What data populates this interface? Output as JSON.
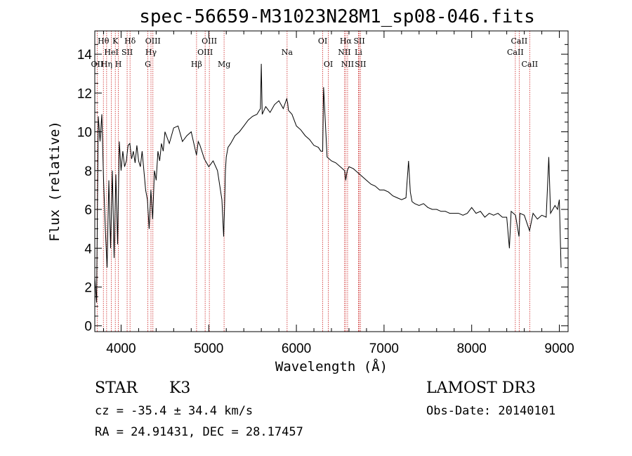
{
  "chart_data": {
    "type": "line",
    "title": "spec-56659-M31023N28M1_sp08-046.fits",
    "xlabel": "Wavelength (Å)",
    "ylabel": "Flux (relative)",
    "xlim": [
      3700,
      9100
    ],
    "ylim": [
      -0.3,
      15.2
    ],
    "xticks": [
      4000,
      5000,
      6000,
      7000,
      8000,
      9000
    ],
    "yticks": [
      0,
      2,
      4,
      6,
      8,
      10,
      12,
      14
    ],
    "series": [
      {
        "name": "spectrum",
        "x": [
          3700,
          3720,
          3740,
          3760,
          3780,
          3800,
          3820,
          3840,
          3860,
          3880,
          3900,
          3920,
          3940,
          3960,
          3980,
          4000,
          4020,
          4040,
          4060,
          4080,
          4100,
          4120,
          4140,
          4160,
          4180,
          4200,
          4220,
          4240,
          4260,
          4280,
          4300,
          4320,
          4340,
          4360,
          4380,
          4400,
          4420,
          4440,
          4460,
          4480,
          4500,
          4550,
          4600,
          4650,
          4700,
          4750,
          4800,
          4850,
          4860,
          4880,
          4900,
          4950,
          5000,
          5050,
          5100,
          5150,
          5170,
          5180,
          5190,
          5200,
          5220,
          5250,
          5300,
          5350,
          5400,
          5450,
          5500,
          5550,
          5590,
          5600,
          5610,
          5650,
          5700,
          5750,
          5800,
          5850,
          5890,
          5900,
          5910,
          5950,
          6000,
          6050,
          6100,
          6150,
          6200,
          6250,
          6280,
          6300,
          6310,
          6350,
          6400,
          6450,
          6500,
          6550,
          6563,
          6580,
          6600,
          6650,
          6700,
          6750,
          6800,
          6850,
          6900,
          6950,
          7000,
          7050,
          7100,
          7150,
          7200,
          7250,
          7280,
          7300,
          7320,
          7350,
          7400,
          7450,
          7500,
          7550,
          7600,
          7650,
          7700,
          7750,
          7800,
          7850,
          7900,
          7950,
          8000,
          8050,
          8100,
          8150,
          8200,
          8250,
          8300,
          8350,
          8400,
          8430,
          8450,
          8500,
          8540,
          8550,
          8600,
          8660,
          8700,
          8750,
          8800,
          8850,
          8880,
          8900,
          8950,
          8980,
          9000,
          9020
        ],
        "values": [
          2.5,
          1.2,
          10.8,
          9.5,
          10.9,
          7.5,
          5.0,
          3.0,
          7.5,
          4.0,
          8.0,
          3.5,
          7.8,
          4.2,
          9.5,
          8.0,
          9.0,
          8.2,
          8.5,
          9.3,
          9.4,
          8.6,
          9.0,
          8.4,
          9.3,
          8.5,
          8.2,
          9.0,
          8.0,
          7.0,
          6.5,
          5.0,
          7.0,
          5.5,
          8.0,
          7.5,
          9.0,
          8.5,
          9.4,
          9.0,
          10.0,
          9.4,
          10.2,
          10.3,
          9.5,
          9.8,
          10.0,
          9.0,
          8.8,
          9.5,
          9.3,
          8.6,
          8.2,
          8.5,
          8.0,
          6.5,
          4.6,
          6.0,
          8.0,
          8.7,
          9.2,
          9.4,
          9.8,
          10.0,
          10.3,
          10.6,
          10.8,
          10.9,
          11.2,
          13.5,
          10.9,
          11.3,
          11.0,
          11.4,
          11.6,
          11.2,
          11.7,
          11.5,
          11.1,
          10.9,
          10.3,
          10.1,
          9.8,
          9.6,
          9.3,
          9.2,
          9.0,
          9.0,
          12.3,
          8.7,
          8.5,
          8.4,
          8.2,
          8.0,
          7.5,
          8.0,
          8.2,
          8.1,
          7.9,
          7.7,
          7.5,
          7.3,
          7.2,
          7.0,
          7.0,
          6.9,
          6.7,
          6.6,
          6.5,
          6.6,
          8.5,
          6.9,
          6.4,
          6.3,
          6.2,
          6.3,
          6.1,
          6.0,
          6.0,
          5.9,
          5.9,
          5.8,
          5.8,
          5.8,
          5.7,
          5.8,
          6.1,
          5.8,
          5.9,
          5.6,
          5.8,
          5.7,
          5.8,
          5.6,
          5.6,
          4.0,
          5.9,
          5.7,
          4.6,
          5.8,
          5.7,
          4.9,
          5.8,
          5.5,
          5.7,
          5.6,
          8.7,
          5.8,
          6.2,
          6.0,
          6.5,
          3.0
        ]
      }
    ],
    "emission_lines": [
      {
        "label": "OII",
        "wl": 3727,
        "row": 2
      },
      {
        "label": "Hθ",
        "wl": 3798,
        "row": 0
      },
      {
        "label": "Hη",
        "wl": 3835,
        "row": 2
      },
      {
        "label": "HeI",
        "wl": 3889,
        "row": 1
      },
      {
        "label": "K",
        "wl": 3934,
        "row": 0
      },
      {
        "label": "SII",
        "wl": 4069,
        "row": 1
      },
      {
        "label": "H",
        "wl": 3969,
        "row": 2
      },
      {
        "label": "Hδ",
        "wl": 4102,
        "row": 0
      },
      {
        "label": "G",
        "wl": 4305,
        "row": 2
      },
      {
        "label": "Hγ",
        "wl": 4341,
        "row": 1
      },
      {
        "label": "OIII",
        "wl": 4363,
        "row": 0
      },
      {
        "label": "Hβ",
        "wl": 4861,
        "row": 2
      },
      {
        "label": "OIII",
        "wl": 4959,
        "row": 1
      },
      {
        "label": "OIII",
        "wl": 5007,
        "row": 0
      },
      {
        "label": "Mg",
        "wl": 5175,
        "row": 2
      },
      {
        "label": "Na",
        "wl": 5894,
        "row": 1
      },
      {
        "label": "OI",
        "wl": 6300,
        "row": 0
      },
      {
        "label": "OI",
        "wl": 6364,
        "row": 2
      },
      {
        "label": "NII",
        "wl": 6548,
        "row": 1
      },
      {
        "label": "Hα",
        "wl": 6563,
        "row": 0
      },
      {
        "label": "NII",
        "wl": 6584,
        "row": 2
      },
      {
        "label": "SII",
        "wl": 6717,
        "row": 0
      },
      {
        "label": "SII",
        "wl": 6731,
        "row": 2
      },
      {
        "label": "Li",
        "wl": 6708,
        "row": 1
      },
      {
        "label": "CaII",
        "wl": 8498,
        "row": 1
      },
      {
        "label": "CaII",
        "wl": 8542,
        "row": 0
      },
      {
        "label": "CaII",
        "wl": 8662,
        "row": 2
      }
    ]
  },
  "info": {
    "class": "STAR",
    "subclass": "K3",
    "cz": "cz = -35.4 ± 34.4 km/s",
    "radec": "RA =  24.91431, DEC =  28.17457",
    "survey": "LAMOST DR3",
    "obsdate": "Obs-Date: 20140101"
  }
}
